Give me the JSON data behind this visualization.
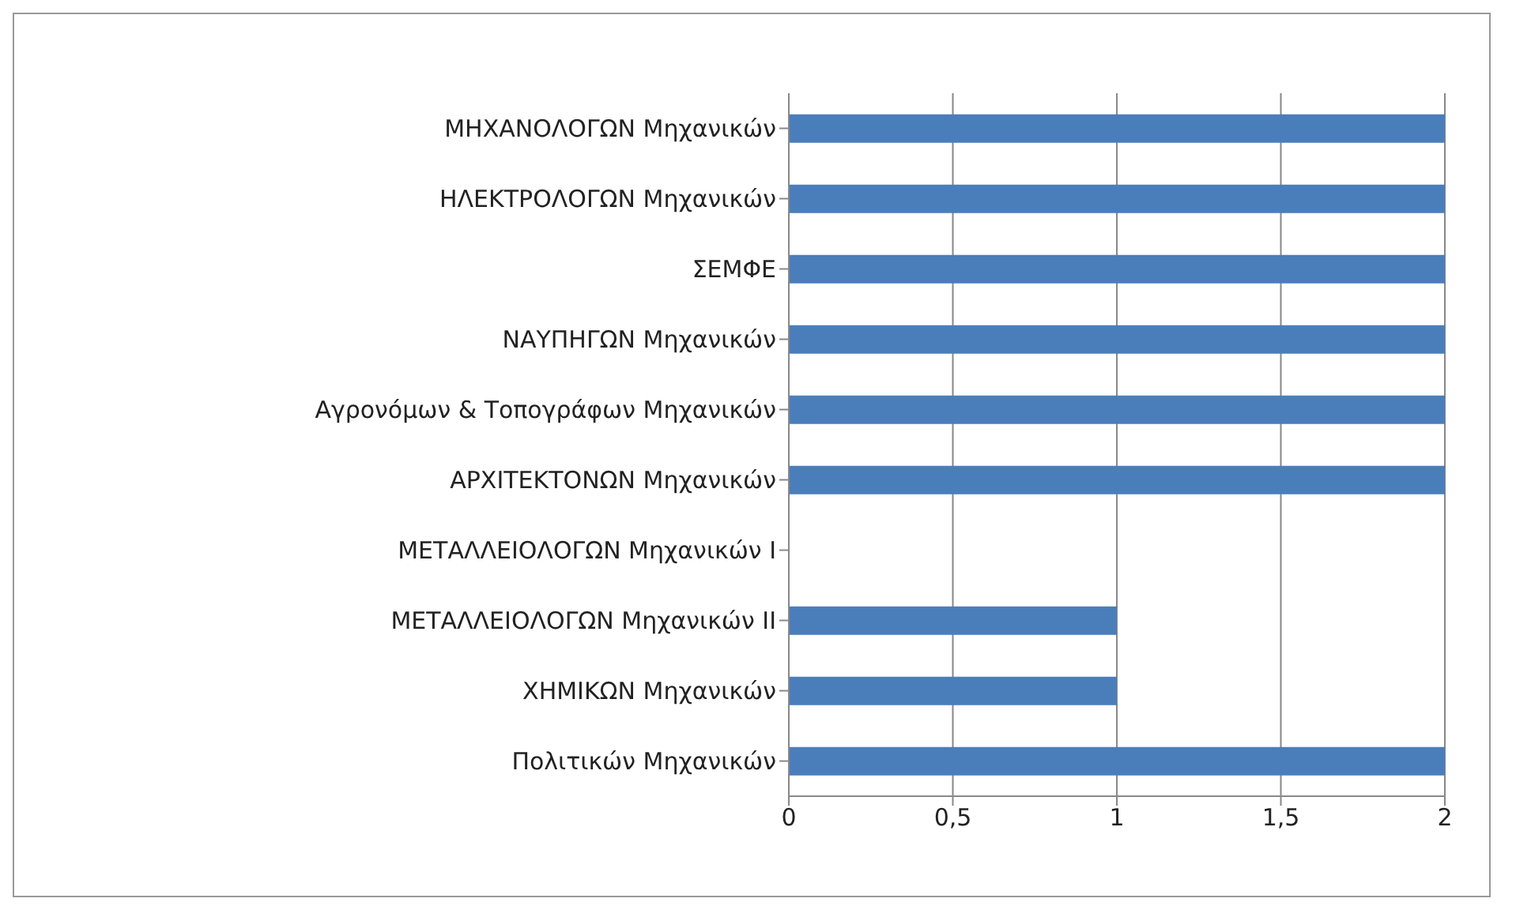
{
  "chart_data": {
    "type": "bar",
    "orientation": "horizontal",
    "categories": [
      "ΜΗΧΑΝΟΛΟΓΩΝ Μηχανικών",
      "ΗΛΕΚΤΡΟΛΟΓΩΝ Μηχανικών",
      "ΣΕΜΦΕ",
      "ΝΑΥΠΗΓΩΝ Μηχανικών",
      "Αγρονόμων & Τοπογράφων  Μηχανικών",
      "ΑΡΧΙΤΕΚΤΟΝΩΝ Μηχανικών",
      "ΜΕΤΑΛΛΕΙΟΛΟΓΩΝ  Μηχανικών Ι",
      "ΜΕΤΑΛΛΕΙΟΛΟΓΩΝ Μηχανικών ΙΙ",
      "ΧΗΜΙΚΩΝ Μηχανικών",
      "Πολιτικών Μηχανικών"
    ],
    "values": [
      2,
      2,
      2,
      2,
      2,
      2,
      0,
      1,
      1,
      2
    ],
    "color": "#4a7ebb",
    "xlim": [
      0,
      2
    ],
    "xticks": [
      0,
      {
        "value": 0.5,
        "label": "0,5"
      },
      1,
      {
        "value": 1.5,
        "label": "1,5"
      },
      2
    ],
    "grid": "x"
  }
}
